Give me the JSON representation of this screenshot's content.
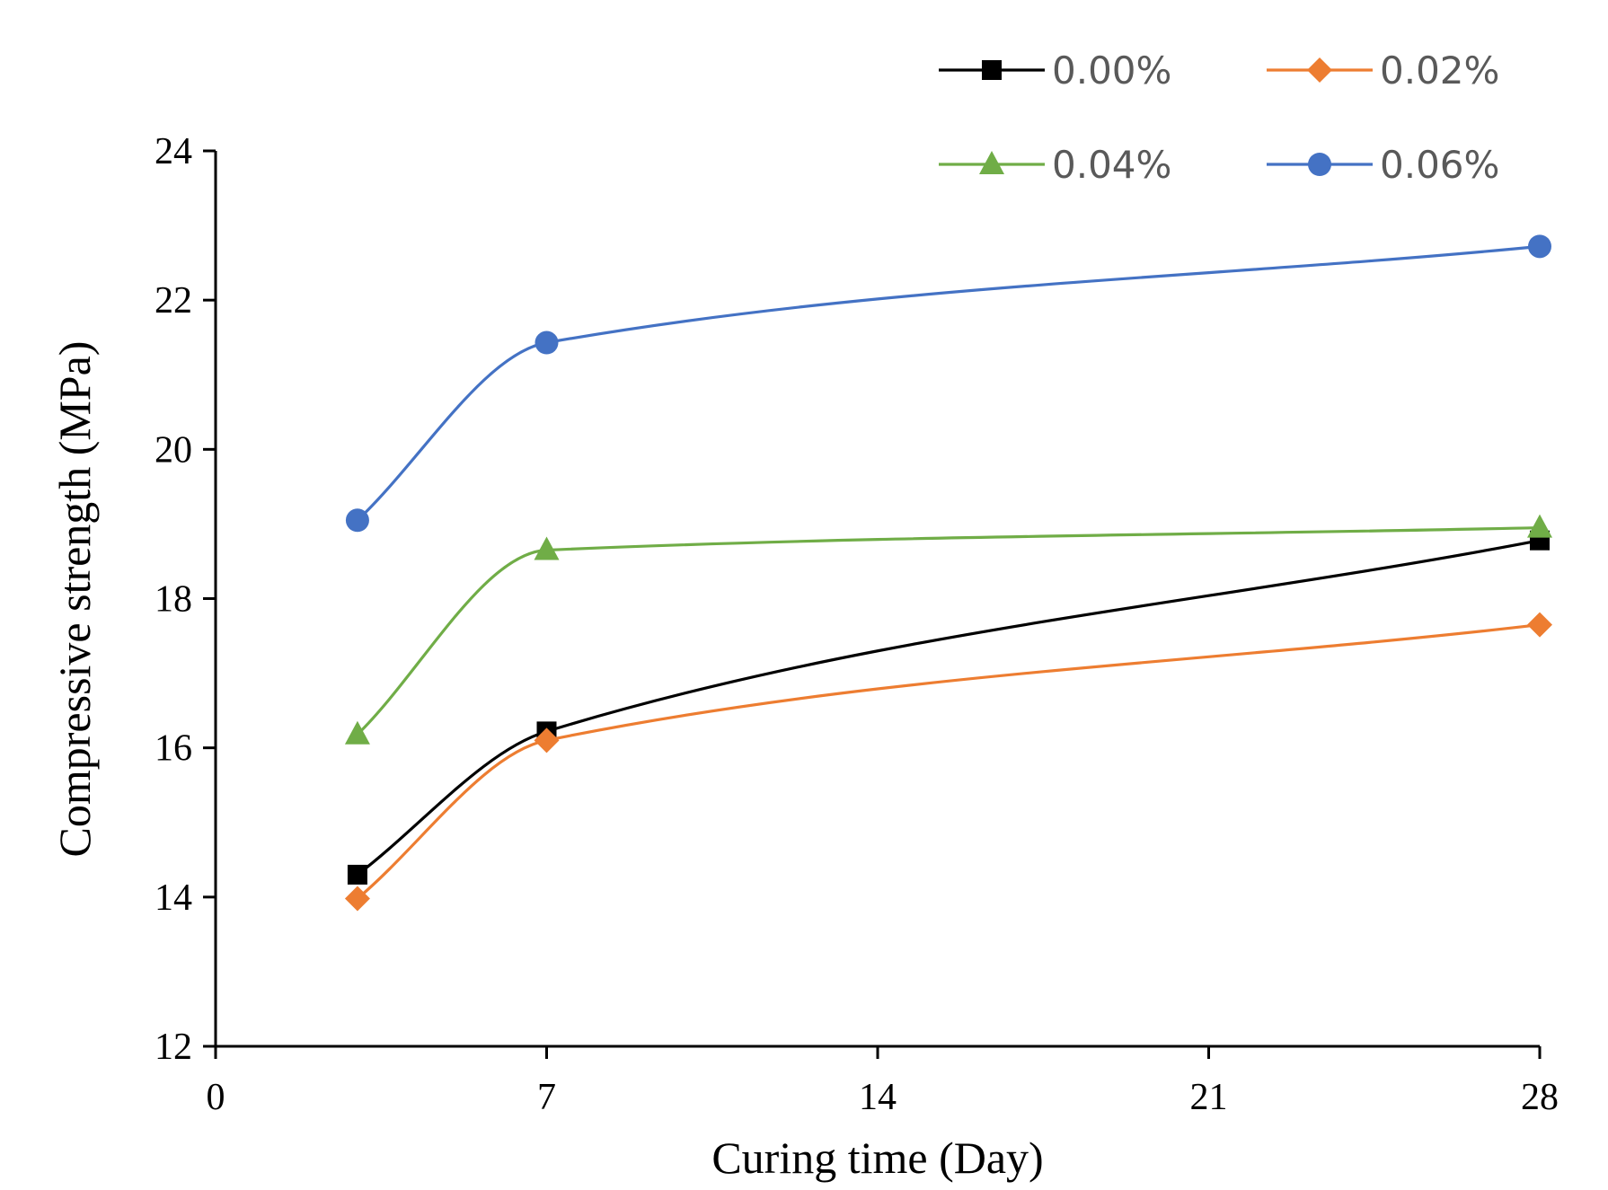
{
  "chart_data": {
    "type": "line",
    "title": "",
    "xlabel": "Curing time (Day)",
    "ylabel": "Compressive strength (MPa)",
    "xlim": [
      0,
      28
    ],
    "ylim": [
      12,
      24
    ],
    "xticks": [
      0,
      7,
      14,
      21,
      28
    ],
    "yticks": [
      12,
      14,
      16,
      18,
      20,
      22,
      24
    ],
    "grid": false,
    "legend_position": "top-right",
    "series": [
      {
        "name": "0.00%",
        "color": "#000000",
        "marker": "square",
        "x": [
          3,
          7,
          28
        ],
        "y": [
          14.3,
          16.22,
          18.78
        ]
      },
      {
        "name": "0.02%",
        "color": "#ED7D31",
        "marker": "diamond",
        "x": [
          3,
          7,
          28
        ],
        "y": [
          13.98,
          16.1,
          17.65
        ]
      },
      {
        "name": "0.04%",
        "color": "#70AD47",
        "marker": "triangle",
        "x": [
          3,
          7,
          28
        ],
        "y": [
          16.18,
          18.65,
          18.95
        ]
      },
      {
        "name": "0.06%",
        "color": "#4472C4",
        "marker": "circle",
        "x": [
          3,
          7,
          28
        ],
        "y": [
          19.05,
          21.43,
          22.72
        ]
      }
    ]
  }
}
